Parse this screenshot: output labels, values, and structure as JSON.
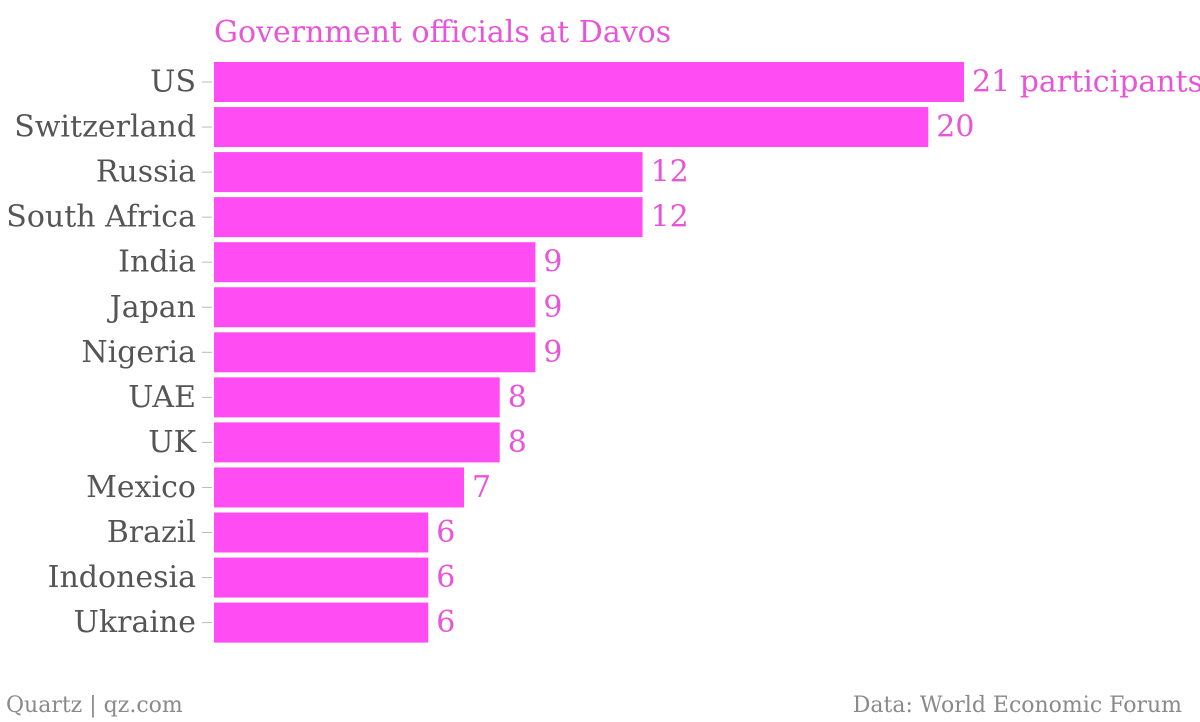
{
  "colors": {
    "bar": "#ff4cf3",
    "accent_text": "#e855d8",
    "label_text": "#555555",
    "tick": "#bbbbbb",
    "footer_text": "#8a8a8a"
  },
  "footer": {
    "source_left": "Quartz | qz.com",
    "source_right": "Data: World Economic Forum"
  },
  "chart_data": {
    "type": "bar",
    "orientation": "horizontal",
    "title": "Government officials at Davos",
    "xlabel": "",
    "ylabel": "",
    "categories": [
      "US",
      "Switzerland",
      "Russia",
      "South Africa",
      "India",
      "Japan",
      "Nigeria",
      "UAE",
      "UK",
      "Mexico",
      "Brazil",
      "Indonesia",
      "Ukraine"
    ],
    "values": [
      21,
      20,
      12,
      12,
      9,
      9,
      9,
      8,
      8,
      7,
      6,
      6,
      6
    ],
    "value_labels": [
      "21 participants",
      "20",
      "12",
      "12",
      "9",
      "9",
      "9",
      "8",
      "8",
      "7",
      "6",
      "6",
      "6"
    ],
    "xlim": [
      0,
      21
    ],
    "grid": false,
    "legend": "none"
  }
}
